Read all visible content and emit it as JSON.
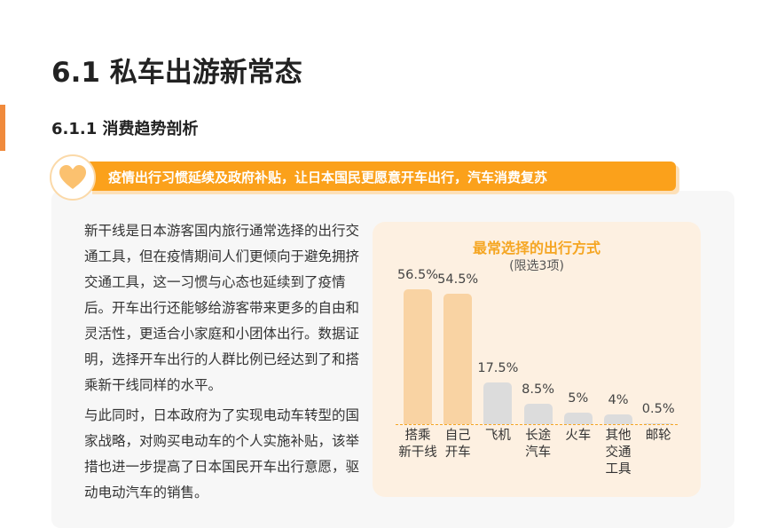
{
  "header": {
    "title": "6.1 私车出游新常态",
    "subtitle": "6.1.1 消费趋势剖析"
  },
  "banner": {
    "text": "疫情出行习惯延续及政府补贴，让日本国民更愿意开车出行，汽车消费复苏"
  },
  "paragraphs": [
    "新干线是日本游客国内旅行通常选择的出行交通工具，但在疫情期间人们更倾向于避免拥挤交通工具，这一习惯与心态也延续到了疫情后。开车出行还能够给游客带来更多的自由和灵活性，更适合小家庭和小团体出行。数据证明，选择开车出行的人群比例已经达到了和搭乘新干线同样的水平。",
    "与此同时，日本政府为了实现电动车转型的国家战略，对购买电动车的个人实施补贴，该举措也进一步提高了日本国民开车出行意愿，驱动电动汽车的销售。"
  ],
  "chart_data": {
    "type": "bar",
    "title": "最常选择的出行方式",
    "subtitle": "(限选3项)",
    "categories": [
      "搭乘\n新干线",
      "自己\n开车",
      "飞机",
      "长途\n汽车",
      "火车",
      "其他\n交通\n工具",
      "邮轮"
    ],
    "values": [
      56.5,
      54.5,
      17.5,
      8.5,
      5,
      4,
      0.5
    ],
    "value_labels": [
      "56.5%",
      "54.5%",
      "17.5%",
      "8.5%",
      "5%",
      "4%",
      "0.5%"
    ],
    "colors": [
      "#f9d3a3",
      "#f9d3a3",
      "#dcdcdc",
      "#dcdcdc",
      "#dcdcdc",
      "#dcdcdc",
      "#dcdcdc"
    ]
  }
}
